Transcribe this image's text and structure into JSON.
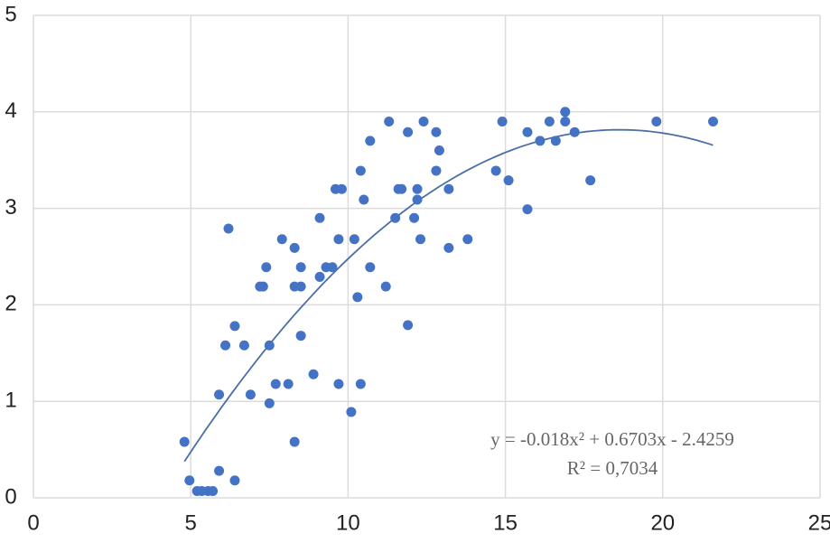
{
  "chart_data": {
    "type": "scatter",
    "color": "#4472c4",
    "grid": true,
    "xlim": [
      0,
      25
    ],
    "xticks": [
      0,
      5,
      10,
      15,
      20,
      25
    ],
    "ylim": [
      0,
      5
    ],
    "yticks": [
      0,
      1,
      2,
      3,
      4,
      5
    ],
    "x": [
      4.8,
      4.96,
      5.2,
      5.35,
      5.55,
      5.7,
      5.9,
      5.9,
      6.1,
      6.2,
      6.4,
      6.4,
      6.7,
      6.9,
      7.2,
      7.3,
      7.4,
      7.5,
      7.5,
      7.7,
      7.9,
      8.1,
      8.3,
      8.3,
      8.3,
      8.5,
      8.5,
      8.5,
      8.9,
      9.1,
      9.1,
      9.3,
      9.5,
      9.6,
      9.8,
      9.7,
      9.7,
      10.1,
      10.2,
      10.3,
      10.4,
      10.4,
      10.5,
      10.7,
      10.7,
      11.2,
      11.3,
      11.5,
      11.6,
      11.7,
      11.9,
      11.9,
      12.1,
      12.2,
      12.2,
      12.3,
      12.4,
      12.8,
      12.9,
      12.8,
      13.2,
      13.2,
      13.8,
      14.7,
      14.9,
      15.1,
      15.7,
      15.7,
      16.1,
      16.4,
      16.6,
      16.9,
      16.9,
      17.2,
      17.7,
      19.8,
      21.6
    ],
    "y": [
      0.58,
      0.18,
      0.07,
      0.07,
      0.07,
      0.07,
      0.28,
      1.07,
      1.58,
      2.79,
      1.78,
      0.18,
      1.58,
      1.07,
      2.19,
      2.19,
      2.39,
      0.98,
      1.58,
      1.18,
      2.68,
      1.18,
      2.19,
      2.59,
      0.58,
      2.19,
      1.68,
      2.39,
      1.28,
      2.9,
      2.29,
      2.39,
      2.39,
      3.2,
      3.2,
      2.68,
      1.18,
      0.89,
      2.68,
      2.08,
      3.39,
      1.18,
      3.09,
      3.7,
      2.39,
      2.19,
      3.9,
      2.9,
      3.2,
      3.2,
      3.79,
      1.79,
      2.9,
      3.2,
      3.09,
      2.68,
      3.9,
      3.79,
      3.6,
      3.39,
      2.59,
      3.2,
      2.68,
      3.39,
      3.9,
      3.29,
      3.79,
      2.99,
      3.7,
      3.9,
      3.7,
      4.0,
      3.9,
      3.79,
      3.29,
      3.9,
      3.9
    ],
    "trendline": {
      "coefficients": [
        -0.018,
        0.6703,
        -2.4259
      ],
      "color": "#4a6fa5",
      "equation": "y = -0.018x² + 0.6703x - 2.4259",
      "r_squared_label": "R² = 0,7034"
    }
  }
}
